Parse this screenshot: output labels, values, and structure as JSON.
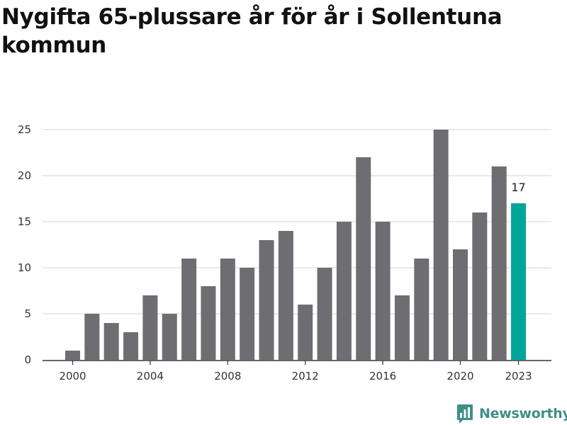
{
  "chart_data": {
    "type": "bar",
    "title": "Nygifta 65-plussare år för år i Sollentuna kommun",
    "xlabel": "",
    "ylabel": "",
    "categories": [
      "2000",
      "2001",
      "2002",
      "2003",
      "2004",
      "2005",
      "2006",
      "2007",
      "2008",
      "2009",
      "2010",
      "2011",
      "2012",
      "2013",
      "2014",
      "2015",
      "2016",
      "2017",
      "2018",
      "2019",
      "2020",
      "2021",
      "2022",
      "2023"
    ],
    "values": [
      1,
      5,
      4,
      3,
      7,
      5,
      11,
      8,
      11,
      10,
      13,
      14,
      6,
      10,
      15,
      22,
      15,
      7,
      11,
      25,
      12,
      16,
      21,
      17
    ],
    "ylim": [
      0,
      25
    ],
    "yticks": [
      0,
      5,
      10,
      15,
      20,
      25
    ],
    "xtick_labels": [
      "2000",
      "2004",
      "2008",
      "2012",
      "2016",
      "2020",
      "2023"
    ],
    "highlight": {
      "category": "2023",
      "label": "17"
    },
    "grid": true
  },
  "colors": {
    "bar": "#6e6d72",
    "highlight": "#00a59a",
    "grid": "#dcdcdc",
    "axis": "#333333",
    "brand": "#3f8f88"
  },
  "brand": {
    "name": "Newsworthy",
    "icon": "newsworthy-logo-icon"
  }
}
